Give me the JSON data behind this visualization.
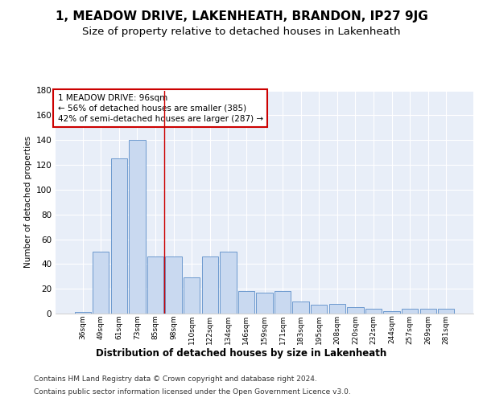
{
  "title": "1, MEADOW DRIVE, LAKENHEATH, BRANDON, IP27 9JG",
  "subtitle": "Size of property relative to detached houses in Lakenheath",
  "xlabel": "Distribution of detached houses by size in Lakenheath",
  "ylabel": "Number of detached properties",
  "categories": [
    "36sqm",
    "49sqm",
    "61sqm",
    "73sqm",
    "85sqm",
    "98sqm",
    "110sqm",
    "122sqm",
    "134sqm",
    "146sqm",
    "159sqm",
    "171sqm",
    "183sqm",
    "195sqm",
    "208sqm",
    "220sqm",
    "232sqm",
    "244sqm",
    "257sqm",
    "269sqm",
    "281sqm"
  ],
  "values": [
    1,
    50,
    125,
    140,
    46,
    46,
    29,
    46,
    50,
    18,
    17,
    18,
    10,
    7,
    8,
    5,
    4,
    2,
    4,
    4,
    4
  ],
  "bar_color": "#c9d9f0",
  "bar_edge_color": "#5b8ec9",
  "vline_x": 4.5,
  "vline_color": "#cc0000",
  "annotation_line1": "1 MEADOW DRIVE: 96sqm",
  "annotation_line2": "← 56% of detached houses are smaller (385)",
  "annotation_line3": "42% of semi-detached houses are larger (287) →",
  "annotation_box_color": "#cc0000",
  "ylim": [
    0,
    180
  ],
  "yticks": [
    0,
    20,
    40,
    60,
    80,
    100,
    120,
    140,
    160,
    180
  ],
  "footer_line1": "Contains HM Land Registry data © Crown copyright and database right 2024.",
  "footer_line2": "Contains public sector information licensed under the Open Government Licence v3.0.",
  "background_color": "#e8eef8",
  "fig_background": "#ffffff",
  "title_fontsize": 11,
  "subtitle_fontsize": 9.5,
  "annotation_fontsize": 7.5,
  "footer_fontsize": 6.5,
  "xlabel_fontsize": 8.5,
  "ylabel_fontsize": 7.5,
  "grid_color": "#ffffff"
}
